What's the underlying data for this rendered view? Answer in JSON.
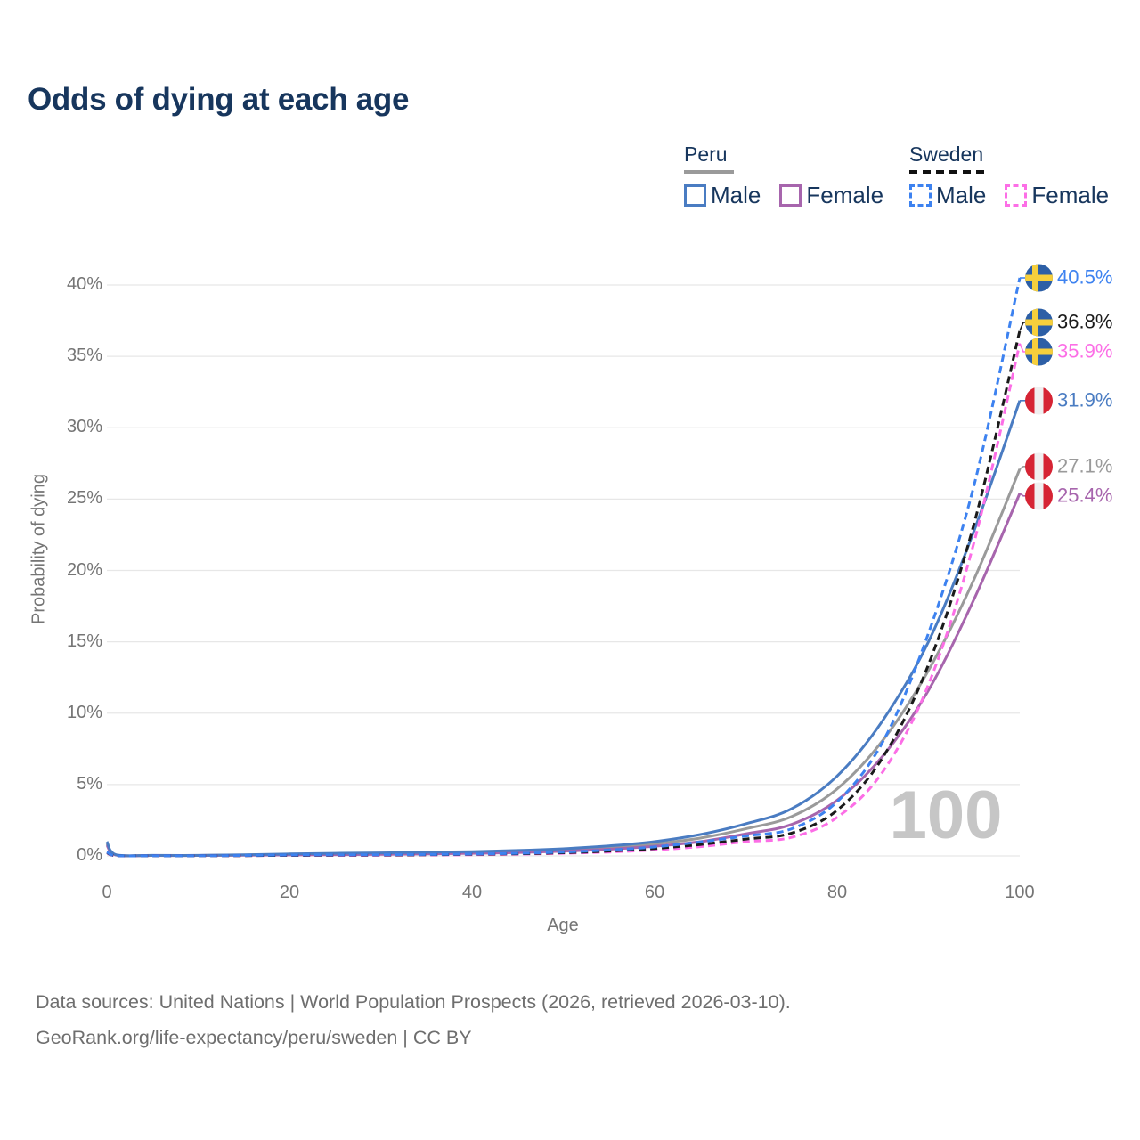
{
  "title": "Odds of dying at each age",
  "legend": {
    "groups": [
      {
        "label": "Peru",
        "line_style": "solid",
        "underline_color": "#9a9a9a",
        "items": [
          {
            "label": "Male",
            "color": "#4a7cc2",
            "dashed": false
          },
          {
            "label": "Female",
            "color": "#a765ad",
            "dashed": false
          }
        ]
      },
      {
        "label": "Sweden",
        "line_style": "dashed",
        "underline_color": "#111111",
        "items": [
          {
            "label": "Male",
            "color": "#3d82f0",
            "dashed": true
          },
          {
            "label": "Female",
            "color": "#fc6ee6",
            "dashed": true
          }
        ]
      }
    ]
  },
  "chart_data": {
    "type": "line",
    "title": "Odds of dying at each age",
    "xlabel": "Age",
    "ylabel": "Probability of dying",
    "xlim": [
      0,
      100
    ],
    "ylim": [
      0,
      40
    ],
    "x_ticks": [
      "0",
      "20",
      "40",
      "60",
      "80",
      "100"
    ],
    "y_ticks": [
      "0%",
      "5%",
      "10%",
      "15%",
      "20%",
      "25%",
      "30%",
      "35%",
      "40%"
    ],
    "grid": true,
    "grid_color": "#e7e7e7",
    "watermark": "100",
    "watermark_color": "#c6c6c6",
    "x": [
      0,
      1,
      5,
      10,
      15,
      20,
      25,
      30,
      35,
      40,
      45,
      50,
      55,
      60,
      65,
      70,
      75,
      80,
      85,
      90,
      95,
      100
    ],
    "series": [
      {
        "name": "Peru Total",
        "country": "Peru",
        "sex": "both",
        "color": "#9a9a9a",
        "dashed": false,
        "flag": "peru",
        "end_label": "27.1%",
        "values": [
          0.88,
          0.07,
          0.03,
          0.03,
          0.06,
          0.1,
          0.13,
          0.16,
          0.19,
          0.24,
          0.31,
          0.42,
          0.58,
          0.84,
          1.25,
          1.9,
          2.75,
          4.7,
          8.1,
          13.0,
          19.4,
          27.1
        ]
      },
      {
        "name": "Peru Female",
        "country": "Peru",
        "sex": "female",
        "color": "#a765ad",
        "dashed": false,
        "flag": "peru",
        "end_label": "25.4%",
        "values": [
          0.76,
          0.06,
          0.03,
          0.03,
          0.05,
          0.07,
          0.09,
          0.11,
          0.14,
          0.18,
          0.24,
          0.33,
          0.47,
          0.68,
          1.0,
          1.55,
          2.2,
          3.9,
          7.0,
          11.6,
          18.0,
          25.4
        ]
      },
      {
        "name": "Peru Male",
        "country": "Peru",
        "sex": "male",
        "color": "#4a7cc2",
        "dashed": false,
        "flag": "peru",
        "end_label": "31.9%",
        "values": [
          1.0,
          0.08,
          0.04,
          0.04,
          0.08,
          0.14,
          0.18,
          0.21,
          0.25,
          0.3,
          0.38,
          0.5,
          0.7,
          1.0,
          1.5,
          2.25,
          3.3,
          5.6,
          9.5,
          15.0,
          22.8,
          31.9
        ]
      },
      {
        "name": "Sweden Female",
        "country": "Sweden",
        "sex": "female",
        "color": "#fc6ee6",
        "dashed": true,
        "flag": "sweden",
        "end_label": "35.9%",
        "values": [
          0.21,
          0.01,
          0.01,
          0.01,
          0.02,
          0.03,
          0.03,
          0.04,
          0.06,
          0.08,
          0.12,
          0.18,
          0.27,
          0.42,
          0.65,
          1.0,
          1.3,
          2.7,
          5.9,
          12.0,
          22.0,
          35.9
        ]
      },
      {
        "name": "Sweden Total",
        "country": "Sweden",
        "sex": "both",
        "color": "#1a1a1a",
        "dashed": true,
        "flag": "sweden",
        "end_label": "36.8%",
        "values": [
          0.24,
          0.02,
          0.01,
          0.01,
          0.02,
          0.04,
          0.05,
          0.06,
          0.08,
          0.11,
          0.15,
          0.22,
          0.34,
          0.52,
          0.8,
          1.18,
          1.6,
          3.2,
          6.9,
          13.4,
          23.3,
          36.8
        ]
      },
      {
        "name": "Sweden Male",
        "country": "Sweden",
        "sex": "male",
        "color": "#3d82f0",
        "dashed": true,
        "flag": "sweden",
        "end_label": "40.5%",
        "values": [
          0.28,
          0.02,
          0.01,
          0.01,
          0.03,
          0.06,
          0.07,
          0.08,
          0.1,
          0.13,
          0.18,
          0.27,
          0.41,
          0.63,
          0.98,
          1.4,
          1.9,
          3.8,
          8.0,
          15.6,
          26.0,
          40.5
        ]
      }
    ]
  },
  "footer": {
    "line1": "Data sources: United Nations | World Population Prospects (2026, retrieved 2026-03-10).",
    "line2": "GeoRank.org/life-expectancy/peru/sweden | CC BY"
  }
}
